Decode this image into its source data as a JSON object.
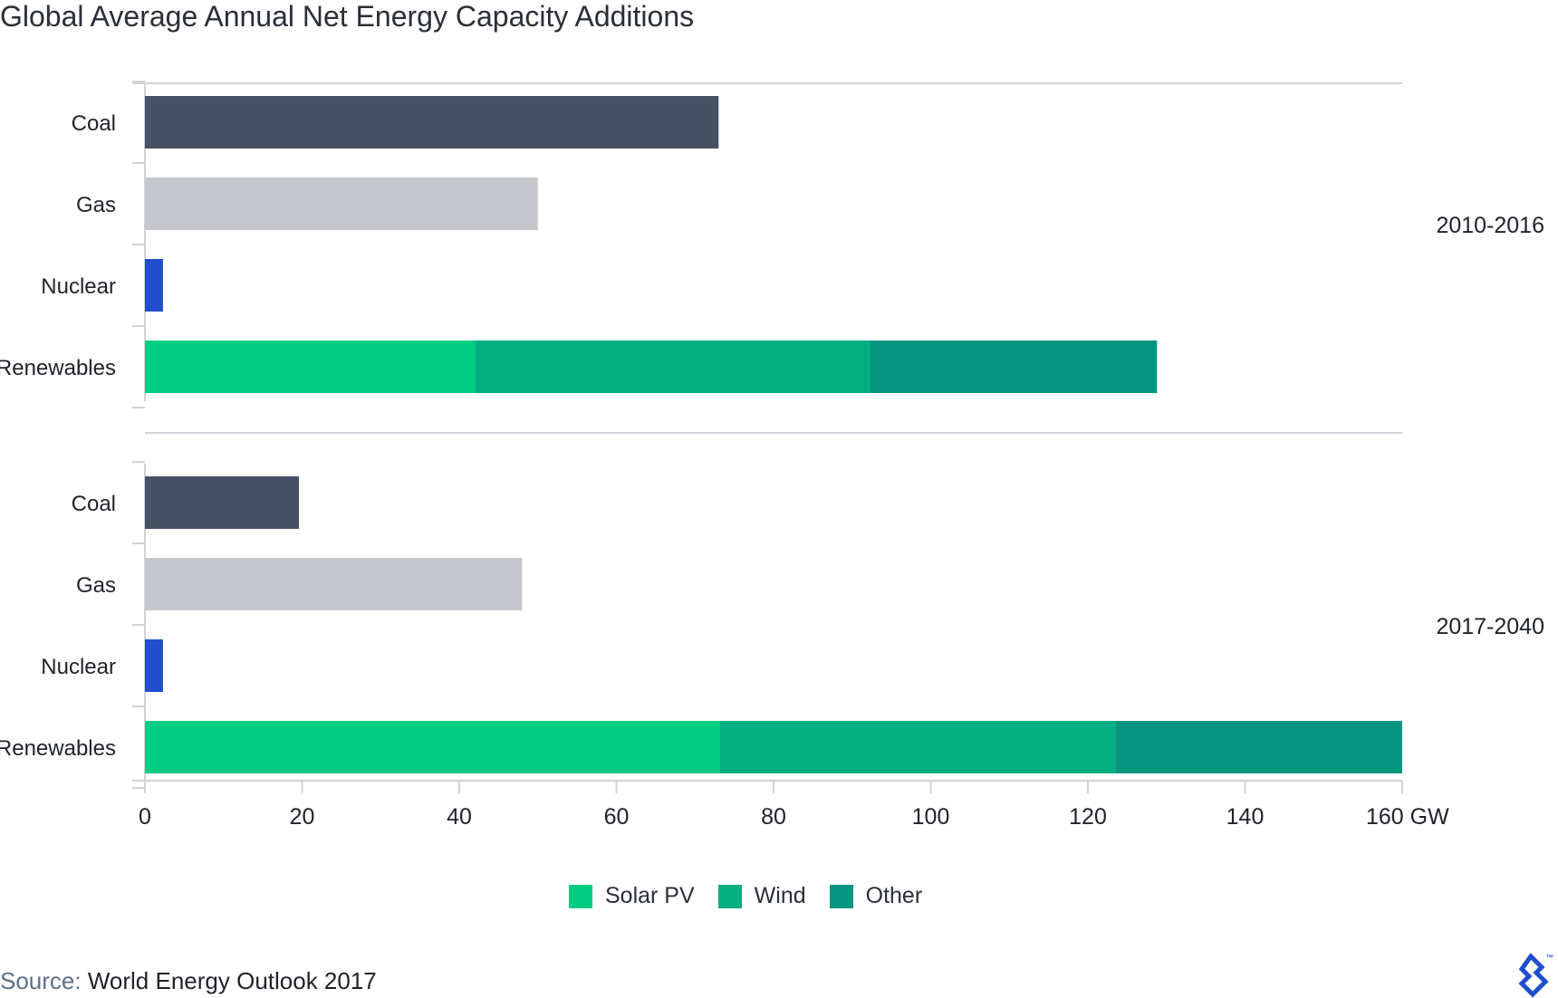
{
  "title": "Global Average Annual Net Energy Capacity Additions",
  "colors": {
    "coal": "#465166",
    "gas": "#c5c7cc",
    "nuclear": "#204ecf",
    "solar": "#00cc83",
    "wind": "#03ae80",
    "other": "#069680",
    "axis": "#d0d3d8",
    "brand": "#204ecf"
  },
  "chart_data": {
    "type": "bar",
    "orientation": "horizontal",
    "stacked": true,
    "unit": "GW",
    "xlim": [
      0,
      160
    ],
    "x_ticks": [
      "0",
      "20",
      "40",
      "60",
      "80",
      "100",
      "120",
      "140",
      "160 GW"
    ],
    "legend_position": "bottom",
    "groups": [
      {
        "label": "2010-2016",
        "categories": [
          {
            "label": "Coal",
            "segments": [
              {
                "series": "Coal",
                "value": 73
              }
            ]
          },
          {
            "label": "Gas",
            "segments": [
              {
                "series": "Gas",
                "value": 50
              }
            ]
          },
          {
            "label": "Nuclear",
            "segments": [
              {
                "series": "Nuclear",
                "value": 2.3
              }
            ]
          },
          {
            "label": "Renewables",
            "segments": [
              {
                "series": "Solar PV",
                "value": 42
              },
              {
                "series": "Wind",
                "value": 50.2
              },
              {
                "series": "Other",
                "value": 36.6
              }
            ]
          }
        ]
      },
      {
        "label": "2017-2040",
        "categories": [
          {
            "label": "Coal",
            "segments": [
              {
                "series": "Coal",
                "value": 19.6
              }
            ]
          },
          {
            "label": "Gas",
            "segments": [
              {
                "series": "Gas",
                "value": 48
              }
            ]
          },
          {
            "label": "Nuclear",
            "segments": [
              {
                "series": "Nuclear",
                "value": 2.3
              }
            ]
          },
          {
            "label": "Renewables",
            "segments": [
              {
                "series": "Solar PV",
                "value": 73.2
              },
              {
                "series": "Wind",
                "value": 50.3
              },
              {
                "series": "Other",
                "value": 36.5
              }
            ]
          }
        ]
      }
    ],
    "legend": [
      {
        "name": "Solar PV",
        "color": "#00cc83"
      },
      {
        "name": "Wind",
        "color": "#03ae80"
      },
      {
        "name": "Other",
        "color": "#069680"
      }
    ]
  },
  "source": {
    "label": "Source:",
    "text": "World Energy Outlook 2017"
  },
  "logo": {
    "icon": "toptal-logo-icon",
    "mark": "™"
  }
}
